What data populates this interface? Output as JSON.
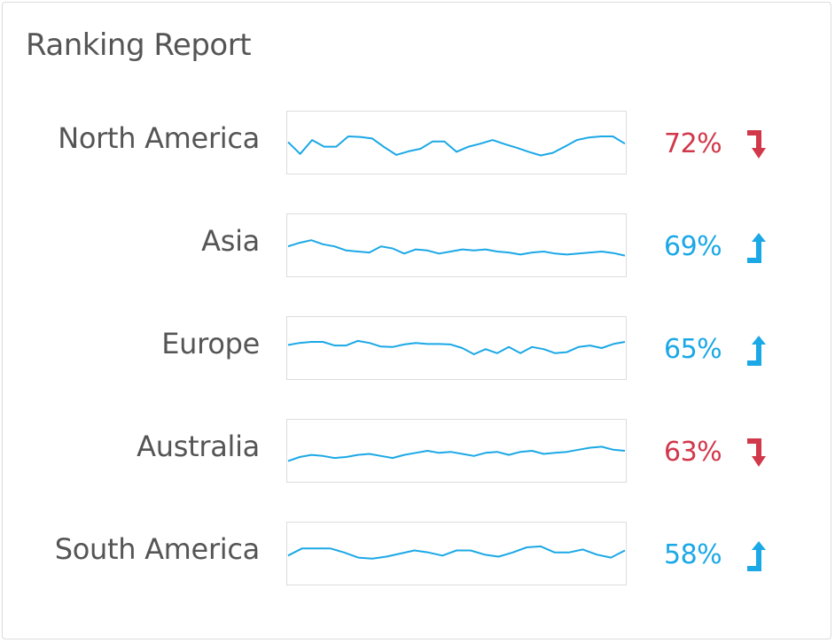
{
  "title": "Ranking Report",
  "colors": {
    "up": "#1ba8e6",
    "down": "#d1384a",
    "line": "#1ba8e6"
  },
  "chart_data": {
    "type": "line",
    "title": "Ranking Report",
    "series": [
      {
        "name": "North America",
        "percent": "72%",
        "trend": "down",
        "icon": "arrow-down-icon",
        "values": [
          0.51,
          0.28,
          0.55,
          0.42,
          0.42,
          0.62,
          0.61,
          0.58,
          0.41,
          0.26,
          0.33,
          0.38,
          0.52,
          0.52,
          0.32,
          0.42,
          0.48,
          0.55,
          0.47,
          0.4,
          0.32,
          0.25,
          0.3,
          0.42,
          0.55,
          0.6,
          0.62,
          0.62,
          0.48
        ]
      },
      {
        "name": "Asia",
        "percent": "69%",
        "trend": "up",
        "icon": "arrow-up-icon",
        "values": [
          0.48,
          0.55,
          0.6,
          0.52,
          0.48,
          0.4,
          0.38,
          0.36,
          0.48,
          0.44,
          0.34,
          0.42,
          0.4,
          0.34,
          0.38,
          0.42,
          0.4,
          0.42,
          0.38,
          0.36,
          0.32,
          0.36,
          0.38,
          0.34,
          0.32,
          0.34,
          0.36,
          0.38,
          0.35,
          0.3
        ]
      },
      {
        "name": "Europe",
        "percent": "65%",
        "trend": "up",
        "icon": "arrow-up-icon",
        "values": [
          0.56,
          0.6,
          0.62,
          0.62,
          0.55,
          0.55,
          0.64,
          0.6,
          0.53,
          0.52,
          0.57,
          0.6,
          0.58,
          0.58,
          0.57,
          0.5,
          0.38,
          0.48,
          0.4,
          0.52,
          0.4,
          0.52,
          0.48,
          0.4,
          0.42,
          0.52,
          0.55,
          0.5,
          0.58,
          0.62
        ]
      },
      {
        "name": "Australia",
        "percent": "63%",
        "trend": "down",
        "icon": "arrow-down-icon",
        "values": [
          0.3,
          0.38,
          0.42,
          0.4,
          0.36,
          0.38,
          0.42,
          0.44,
          0.4,
          0.36,
          0.42,
          0.46,
          0.5,
          0.46,
          0.48,
          0.44,
          0.4,
          0.46,
          0.48,
          0.42,
          0.48,
          0.5,
          0.44,
          0.46,
          0.48,
          0.52,
          0.56,
          0.58,
          0.52,
          0.5
        ]
      },
      {
        "name": "South America",
        "percent": "58%",
        "trend": "up",
        "icon": "arrow-up-icon",
        "values": [
          0.46,
          0.6,
          0.6,
          0.6,
          0.52,
          0.42,
          0.4,
          0.44,
          0.5,
          0.56,
          0.52,
          0.46,
          0.56,
          0.56,
          0.48,
          0.44,
          0.52,
          0.62,
          0.64,
          0.52,
          0.52,
          0.58,
          0.48,
          0.42,
          0.56
        ]
      }
    ]
  }
}
